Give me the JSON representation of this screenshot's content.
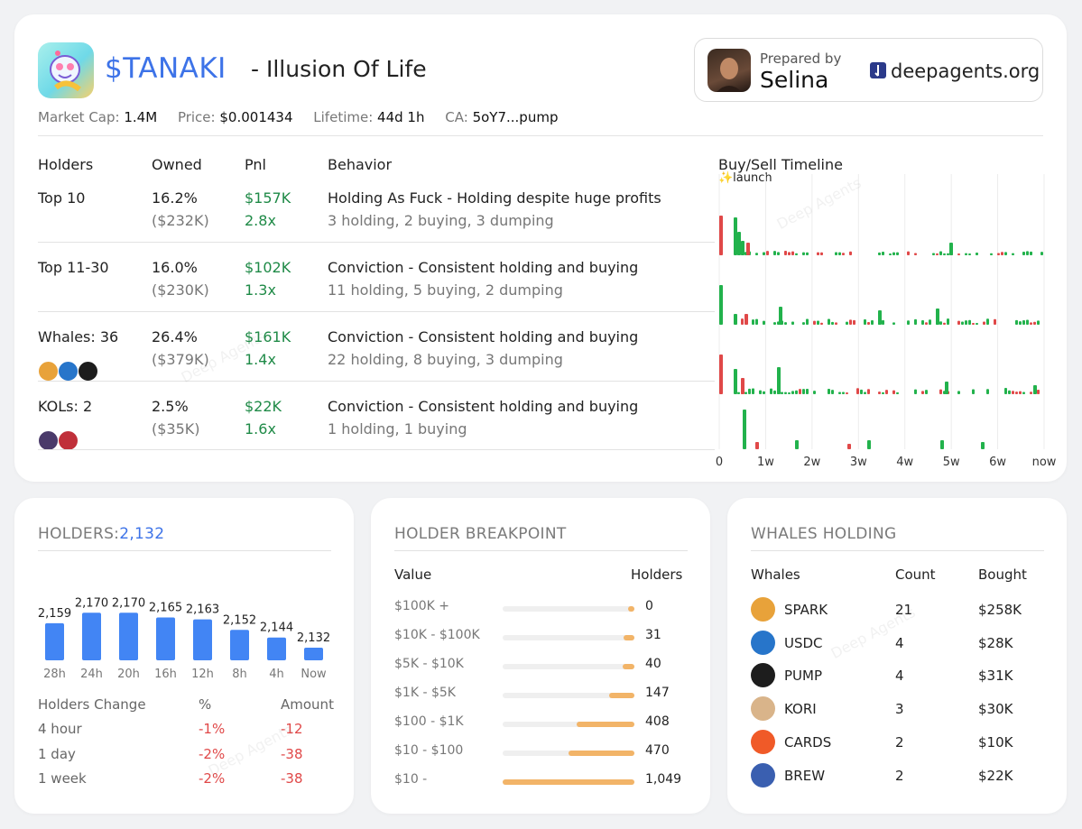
{
  "header": {
    "token": "$TANAKI",
    "subtitle": "- Illusion Of Life",
    "prepared_label": "Prepared by",
    "prepared_name": "Selina",
    "site": "deepagents.org"
  },
  "meta": {
    "market_cap_label": "Market Cap:",
    "market_cap": "1.4M",
    "price_label": "Price:",
    "price": "$0.001434",
    "lifetime_label": "Lifetime:",
    "lifetime": "44d 1h",
    "ca_label": "CA:",
    "ca": "5oY7...pump"
  },
  "table": {
    "headers": {
      "holders": "Holders",
      "owned": "Owned",
      "pnl": "Pnl",
      "behavior": "Behavior"
    },
    "rows": [
      {
        "holder": "Top 10",
        "owned_pct": "16.2%",
        "owned_usd": "($232K)",
        "pnl": "$157K",
        "pnl_x": "2.8x",
        "behavior": "Holding As Fuck - Holding despite huge profits",
        "detail": "3 holding, 2 buying, 3 dumping"
      },
      {
        "holder": "Top 11-30",
        "owned_pct": "16.0%",
        "owned_usd": "($230K)",
        "pnl": "$102K",
        "pnl_x": "1.3x",
        "behavior": "Conviction - Consistent holding and buying",
        "detail": "11 holding, 5 buying, 2 dumping"
      },
      {
        "holder": "Whales: 36",
        "owned_pct": "26.4%",
        "owned_usd": "($379K)",
        "pnl": "$161K",
        "pnl_x": "1.4x",
        "behavior": "Conviction - Consistent holding and buying",
        "detail": "22 holding, 8 buying, 3 dumping"
      },
      {
        "holder": "KOLs: 2",
        "owned_pct": "2.5%",
        "owned_usd": "($35K)",
        "pnl": "$22K",
        "pnl_x": "1.6x",
        "behavior": "Conviction - Consistent holding and buying",
        "detail": "1 holding, 1 buying"
      }
    ]
  },
  "timeline": {
    "title": "Buy/Sell Timeline",
    "launch_label": "✨launch",
    "ticks": [
      "0",
      "1w",
      "2w",
      "3w",
      "4w",
      "5w",
      "6w",
      "now"
    ]
  },
  "holders_card": {
    "title": "HOLDERS:",
    "total": "2,132",
    "chart_data": {
      "type": "bar",
      "categories": [
        "28h",
        "24h",
        "20h",
        "16h",
        "12h",
        "8h",
        "4h",
        "Now"
      ],
      "values": [
        2159,
        2170,
        2170,
        2165,
        2163,
        2152,
        2144,
        2132
      ],
      "labels": [
        "2,159",
        "2,170",
        "2,170",
        "2,165",
        "2,163",
        "2,152",
        "2,144",
        "2,132"
      ],
      "ylim": [
        2120,
        2175
      ],
      "color": "#4285f4"
    },
    "change_headers": {
      "period": "Holders Change",
      "pct": "%",
      "amount": "Amount"
    },
    "changes": [
      {
        "period": "4 hour",
        "pct": "-1%",
        "amount": "-12"
      },
      {
        "period": "1 day",
        "pct": "-2%",
        "amount": "-38"
      },
      {
        "period": "1 week",
        "pct": "-2%",
        "amount": "-38"
      }
    ]
  },
  "breakpoint_card": {
    "title": "HOLDER BREAKPOINT",
    "headers": {
      "value": "Value",
      "holders": "Holders"
    },
    "rows": [
      {
        "range": "$100K +",
        "count": "0",
        "fill": 0.05
      },
      {
        "range": "$10K - $100K",
        "count": "31",
        "fill": 0.08
      },
      {
        "range": "$5K - $10K",
        "count": "40",
        "fill": 0.09
      },
      {
        "range": "$1K - $5K",
        "count": "147",
        "fill": 0.19
      },
      {
        "range": "$100 - $1K",
        "count": "408",
        "fill": 0.44
      },
      {
        "range": "$10 - $100",
        "count": "470",
        "fill": 0.5
      },
      {
        "range": "$10 -",
        "count": "1,049",
        "fill": 1.0
      }
    ]
  },
  "whales_card": {
    "title": "WHALES HOLDING",
    "headers": {
      "whales": "Whales",
      "count": "Count",
      "bought": "Bought"
    },
    "rows": [
      {
        "icon": "spark-icon",
        "name": "SPARK",
        "count": "21",
        "bought": "$258K",
        "color": "#e8a23a"
      },
      {
        "icon": "usdc-icon",
        "name": "USDC",
        "count": "4",
        "bought": "$28K",
        "color": "#2775ca"
      },
      {
        "icon": "pump-icon",
        "name": "PUMP",
        "count": "4",
        "bought": "$31K",
        "color": "#1d1d1d"
      },
      {
        "icon": "kori-icon",
        "name": "KORI",
        "count": "3",
        "bought": "$30K",
        "color": "#d9b48a"
      },
      {
        "icon": "cards-icon",
        "name": "CARDS",
        "count": "2",
        "bought": "$10K",
        "color": "#f05a28"
      },
      {
        "icon": "brew-icon",
        "name": "BREW",
        "count": "2",
        "bought": "$22K",
        "color": "#3a5fb0"
      }
    ]
  },
  "watermark_text": "Deep Agents"
}
